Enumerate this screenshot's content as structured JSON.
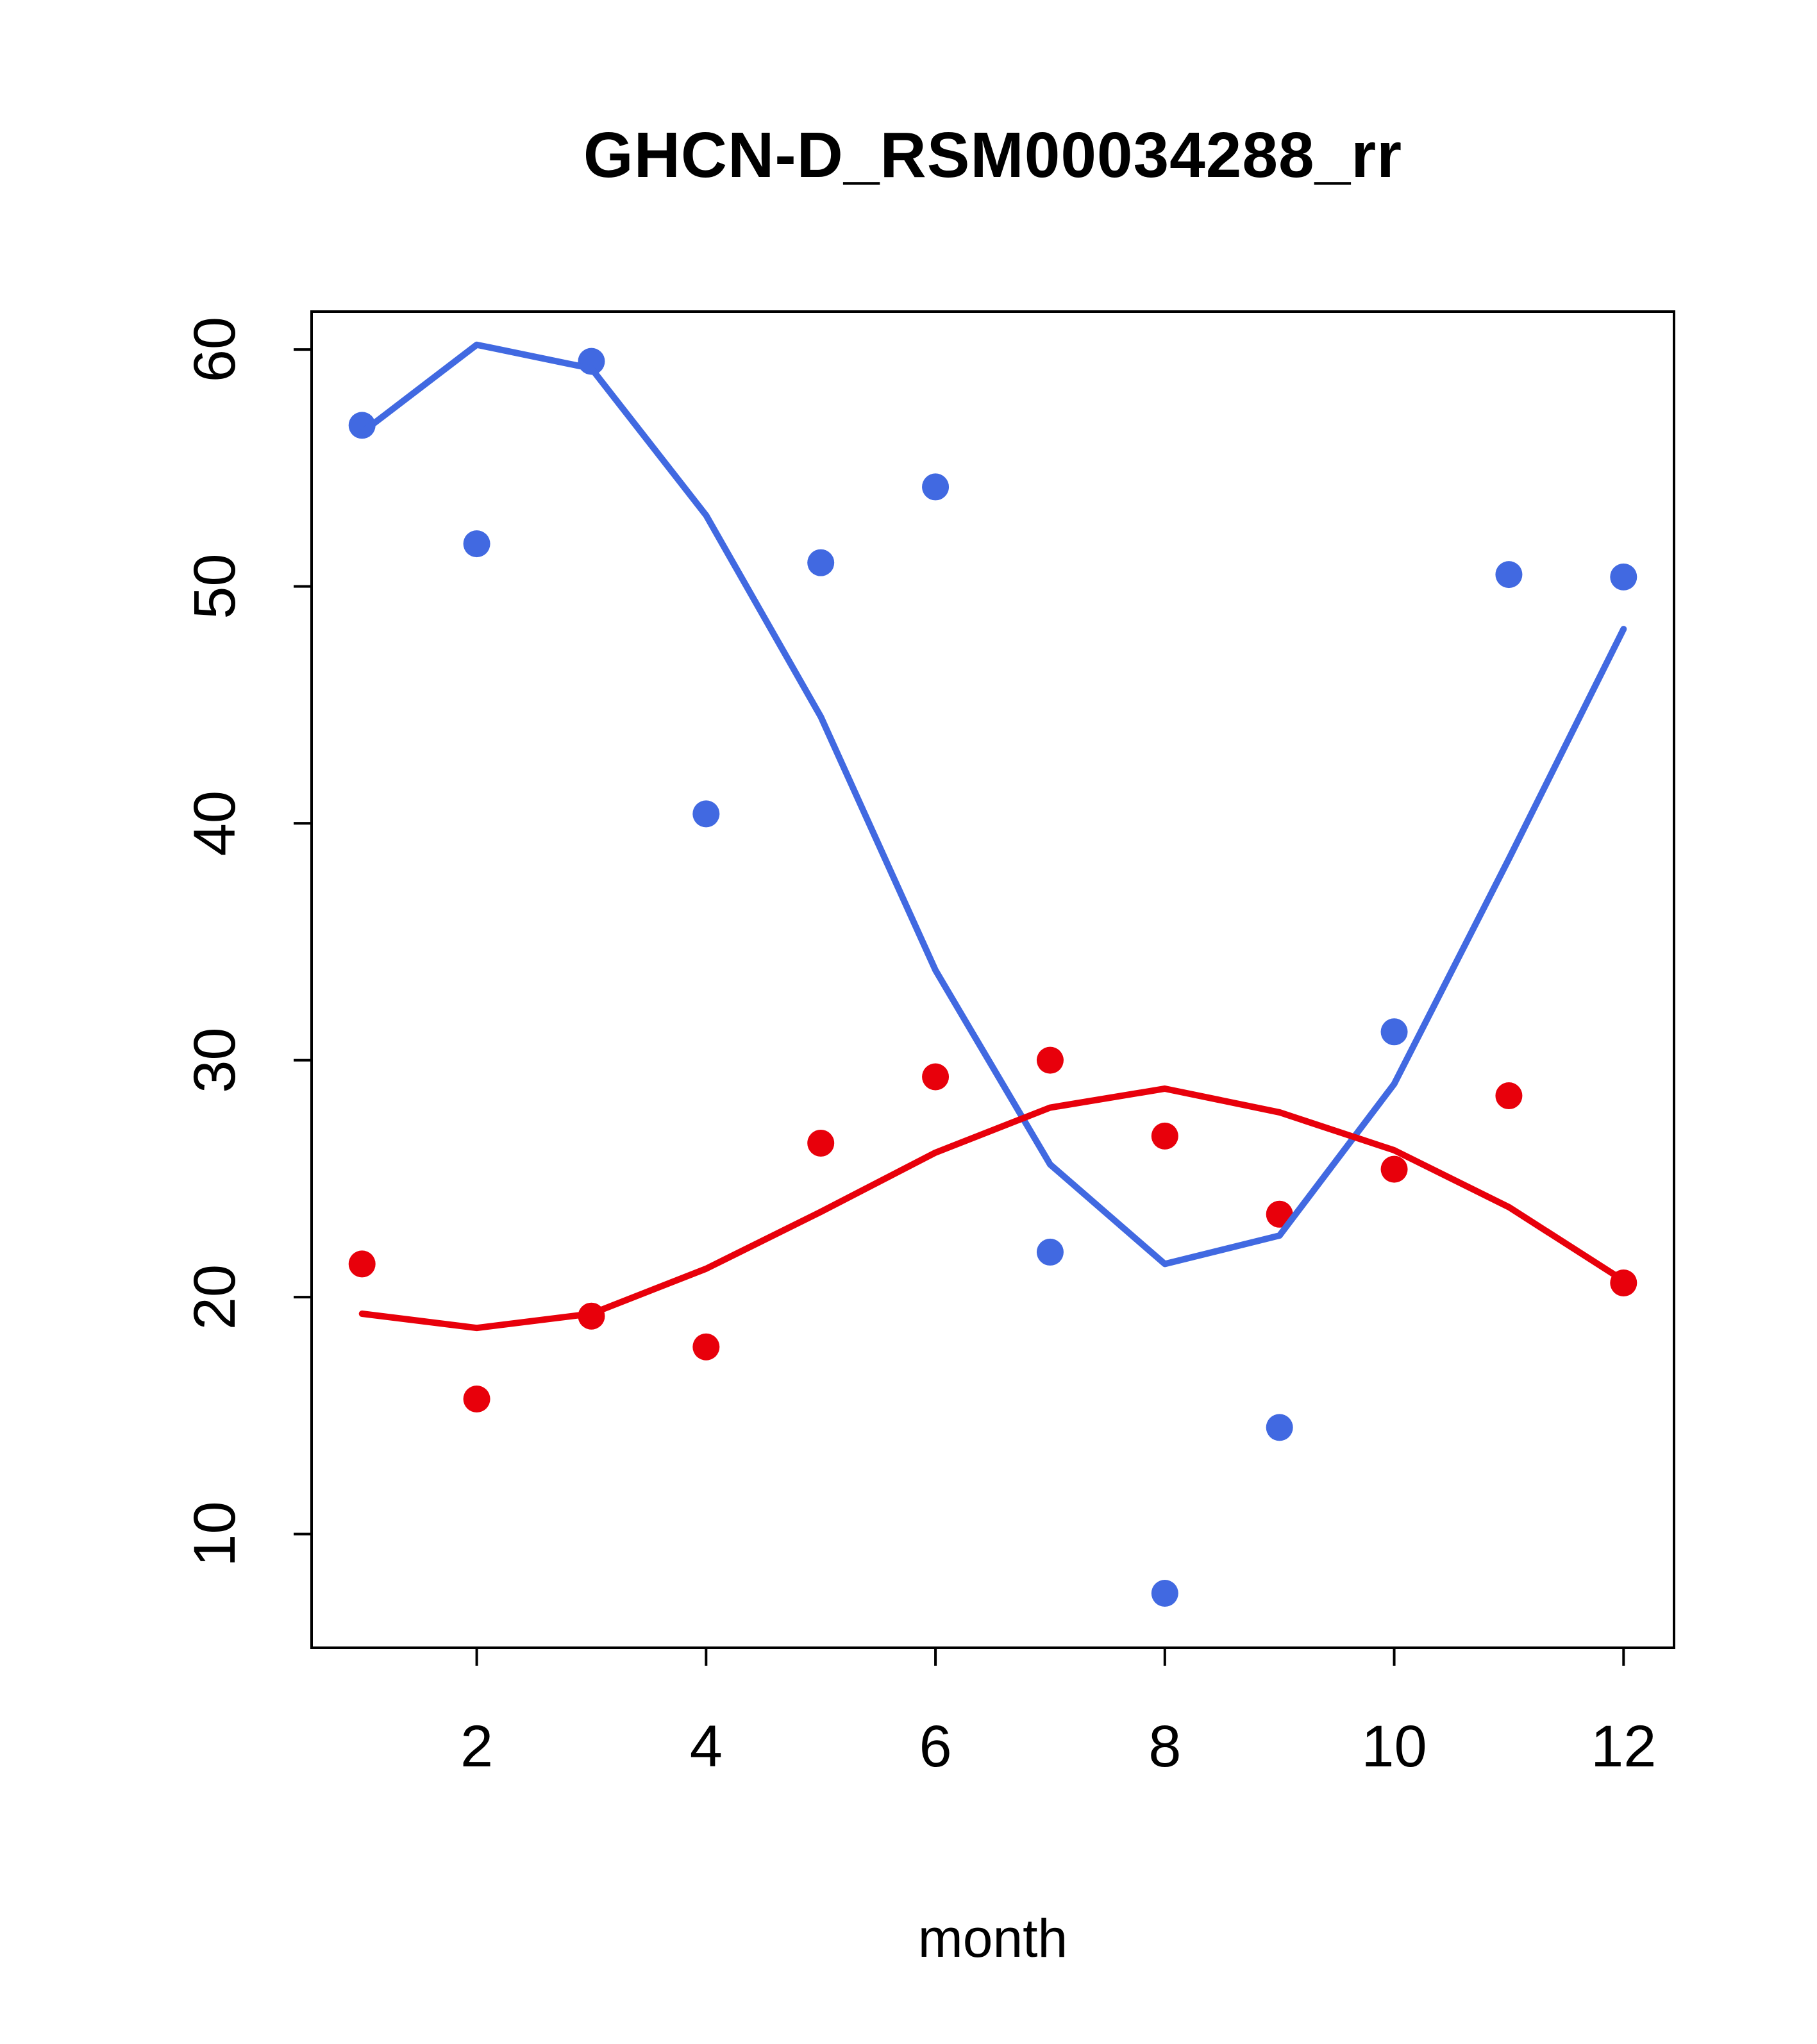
{
  "chart_data": {
    "type": "scatter",
    "title": "GHCN-D_RSM00034288_rr",
    "xlabel": "month",
    "ylabel": "",
    "xlim": [
      0.56,
      12.44
    ],
    "ylim": [
      5.2,
      61.6
    ],
    "x_ticks": [
      2,
      4,
      6,
      8,
      10,
      12
    ],
    "y_ticks": [
      10,
      20,
      30,
      40,
      50,
      60
    ],
    "grid": false,
    "legend": "none",
    "colors": {
      "blue": "#4169E1",
      "red": "#E8000B",
      "axis": "#000000"
    },
    "series": [
      {
        "name": "blue-points",
        "type": "points",
        "color": "#4169E1",
        "x": [
          1,
          2,
          3,
          4,
          5,
          6,
          7,
          8,
          9,
          10,
          11,
          12
        ],
        "y": [
          56.8,
          51.8,
          59.5,
          40.4,
          51.0,
          54.2,
          21.9,
          7.5,
          14.5,
          31.2,
          50.5,
          50.4
        ]
      },
      {
        "name": "red-points",
        "type": "points",
        "color": "#E8000B",
        "x": [
          1,
          2,
          3,
          4,
          5,
          6,
          7,
          8,
          9,
          10,
          11,
          12
        ],
        "y": [
          21.4,
          15.7,
          19.2,
          17.9,
          26.5,
          29.3,
          30.0,
          26.8,
          23.5,
          25.4,
          28.5,
          20.6
        ]
      },
      {
        "name": "blue-smooth-line",
        "type": "line",
        "color": "#4169E1",
        "x": [
          1,
          2,
          3,
          4,
          5,
          6,
          7,
          8,
          9,
          10,
          11,
          12
        ],
        "y": [
          56.5,
          60.2,
          59.2,
          53.0,
          44.5,
          33.8,
          25.6,
          21.4,
          22.6,
          29.0,
          38.5,
          48.2
        ]
      },
      {
        "name": "red-smooth-line",
        "type": "line",
        "color": "#E8000B",
        "x": [
          1,
          2,
          3,
          4,
          5,
          6,
          7,
          8,
          9,
          10,
          11,
          12
        ],
        "y": [
          19.3,
          18.7,
          19.3,
          21.2,
          23.6,
          26.1,
          28.0,
          28.8,
          27.8,
          26.2,
          23.8,
          20.7
        ]
      }
    ]
  }
}
